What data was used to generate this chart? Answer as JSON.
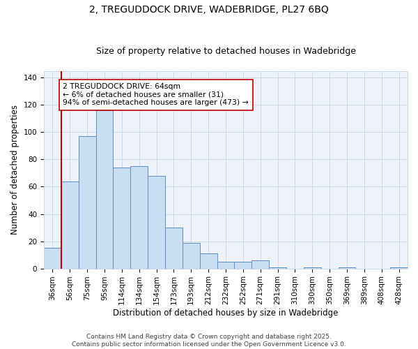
{
  "title1": "2, TREGUDDOCK DRIVE, WADEBRIDGE, PL27 6BQ",
  "title2": "Size of property relative to detached houses in Wadebridge",
  "xlabel": "Distribution of detached houses by size in Wadebridge",
  "ylabel": "Number of detached properties",
  "bar_labels": [
    "36sqm",
    "56sqm",
    "75sqm",
    "95sqm",
    "114sqm",
    "134sqm",
    "154sqm",
    "173sqm",
    "193sqm",
    "212sqm",
    "232sqm",
    "252sqm",
    "271sqm",
    "291sqm",
    "310sqm",
    "330sqm",
    "350sqm",
    "369sqm",
    "389sqm",
    "408sqm",
    "428sqm"
  ],
  "bar_values": [
    15,
    64,
    97,
    116,
    74,
    75,
    68,
    30,
    19,
    11,
    5,
    5,
    6,
    1,
    0,
    1,
    0,
    1,
    0,
    0,
    1
  ],
  "bar_color": "#c9ddf3",
  "bar_edge_color": "#5b8dc8",
  "vline_x": 0.5,
  "vline_color": "#c00000",
  "annotation_text": "2 TREGUDDOCK DRIVE: 64sqm\n← 6% of detached houses are smaller (31)\n94% of semi-detached houses are larger (473) →",
  "annotation_box_color": "white",
  "annotation_box_edge_color": "#c00000",
  "ylim": [
    0,
    145
  ],
  "yticks": [
    0,
    20,
    40,
    60,
    80,
    100,
    120,
    140
  ],
  "grid_color": "#c8d8eb",
  "background_color": "#eef2f9",
  "footer": "Contains HM Land Registry data © Crown copyright and database right 2025.\nContains public sector information licensed under the Open Government Licence v3.0.",
  "title1_fontsize": 10,
  "title2_fontsize": 9,
  "xlabel_fontsize": 8.5,
  "ylabel_fontsize": 8.5,
  "tick_fontsize": 7.5,
  "annotation_fontsize": 7.8,
  "footer_fontsize": 6.5
}
